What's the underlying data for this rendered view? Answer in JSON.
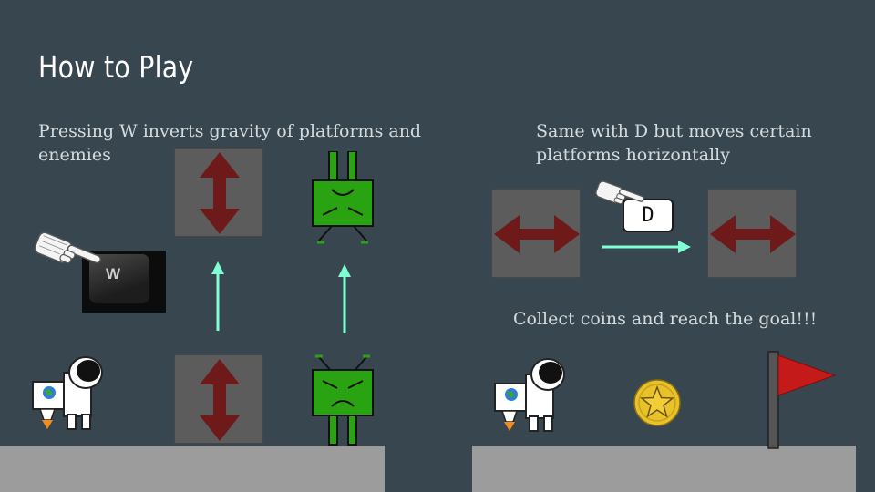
{
  "slide": {
    "title": "How to Play",
    "caption_gravity": "Pressing W inverts gravity of platforms and enemies",
    "caption_horizontal": "Same with D but moves certain platforms horizontally",
    "caption_goal": "Collect coins and reach the goal!!!",
    "w_key_label": "W",
    "d_key_label": "D"
  },
  "colors": {
    "background": "#38474f",
    "ground": "#9c9c9c",
    "block": "#5c5c5c",
    "block_arrow": "#6e1a1a",
    "guide_arrow": "#7fffd4",
    "enemy": "#2aa312",
    "coin": "#e8c22a",
    "flag": "#c41a1a"
  },
  "icons": [
    "hand-pointer-icon",
    "astronaut-icon",
    "enemy-icon",
    "coin-icon",
    "goal-flag-icon",
    "vertical-arrow-icon",
    "horizontal-arrow-icon"
  ]
}
